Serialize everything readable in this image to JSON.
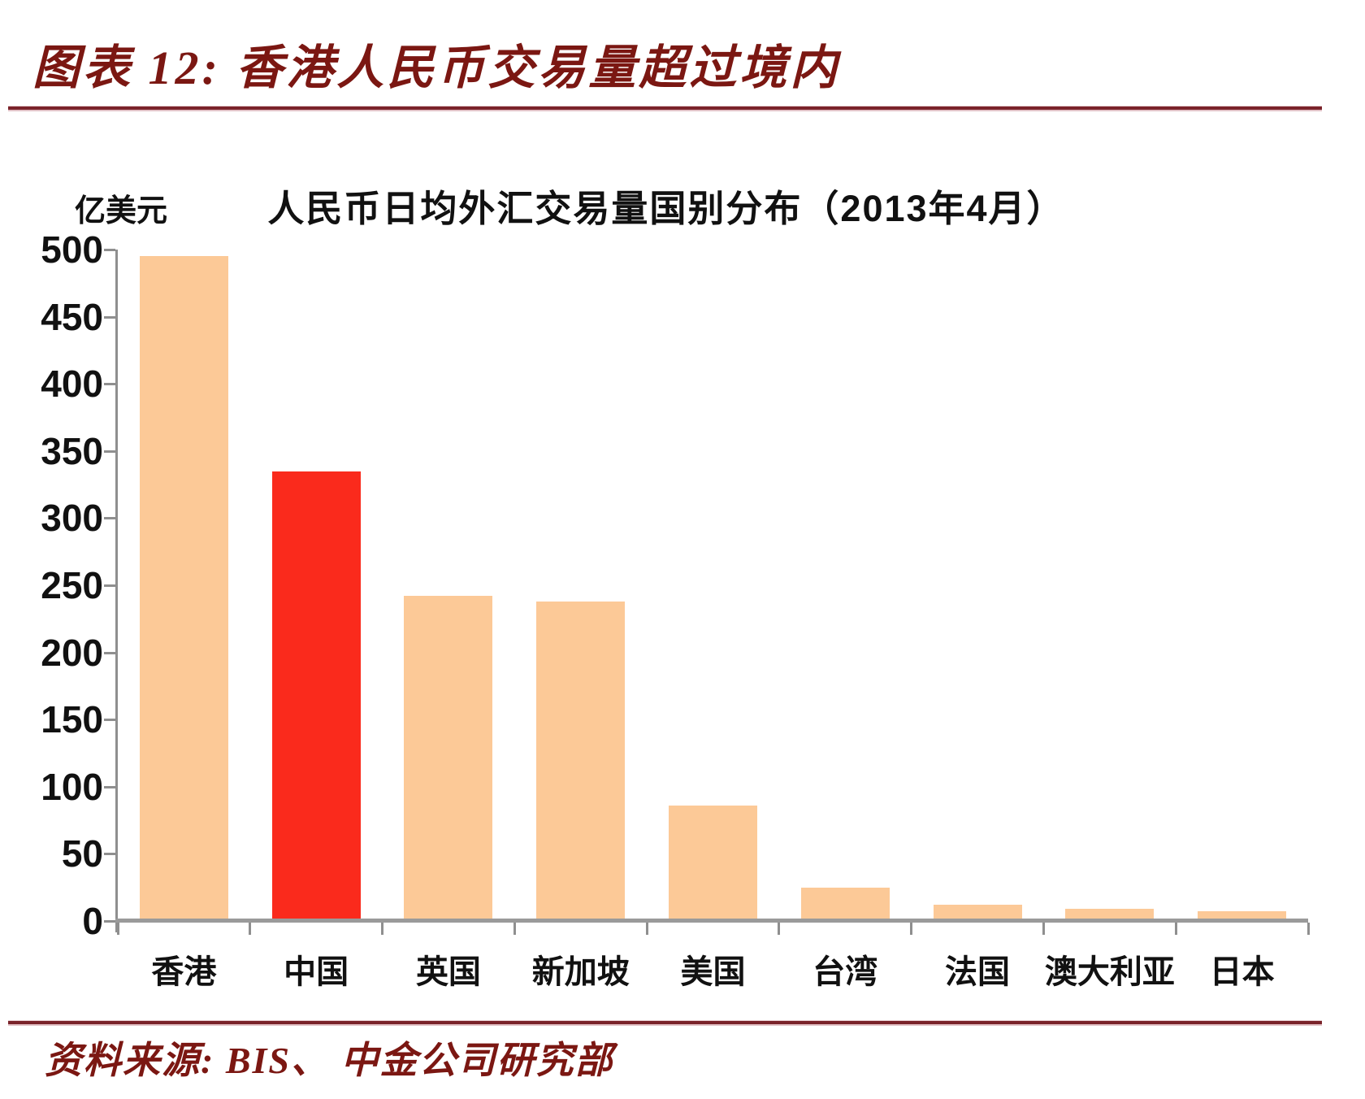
{
  "figure": {
    "title": "图表 12:  香港人民币交易量超过境内",
    "source": "资料来源:  BIS、 中金公司研究部"
  },
  "chart_data": {
    "type": "bar",
    "title": "人民币日均外汇交易量国别分布（2013年4月）",
    "unit_label": "亿美元",
    "categories": [
      "香港",
      "中国",
      "英国",
      "新加坡",
      "美国",
      "台湾",
      "法国",
      "澳大利亚",
      "日本"
    ],
    "values": [
      495,
      335,
      242,
      238,
      86,
      25,
      12,
      9,
      7
    ],
    "highlight_index": 1,
    "highlight_category": "中国",
    "ylim": [
      0,
      500
    ],
    "yticks": [
      500,
      450,
      400,
      350,
      300,
      250,
      200,
      150,
      100,
      50,
      0
    ],
    "grid": false,
    "legend": "none",
    "xlabel": "",
    "ylabel": "亿美元"
  },
  "colors": {
    "bar_fill": "#FCC997",
    "highlight_fill": "#FA2A1C",
    "maroon_text": "#7B1712",
    "rule_line": "#7A232A",
    "axis_gray": "#8F8F8F",
    "text_black": "#111111"
  }
}
